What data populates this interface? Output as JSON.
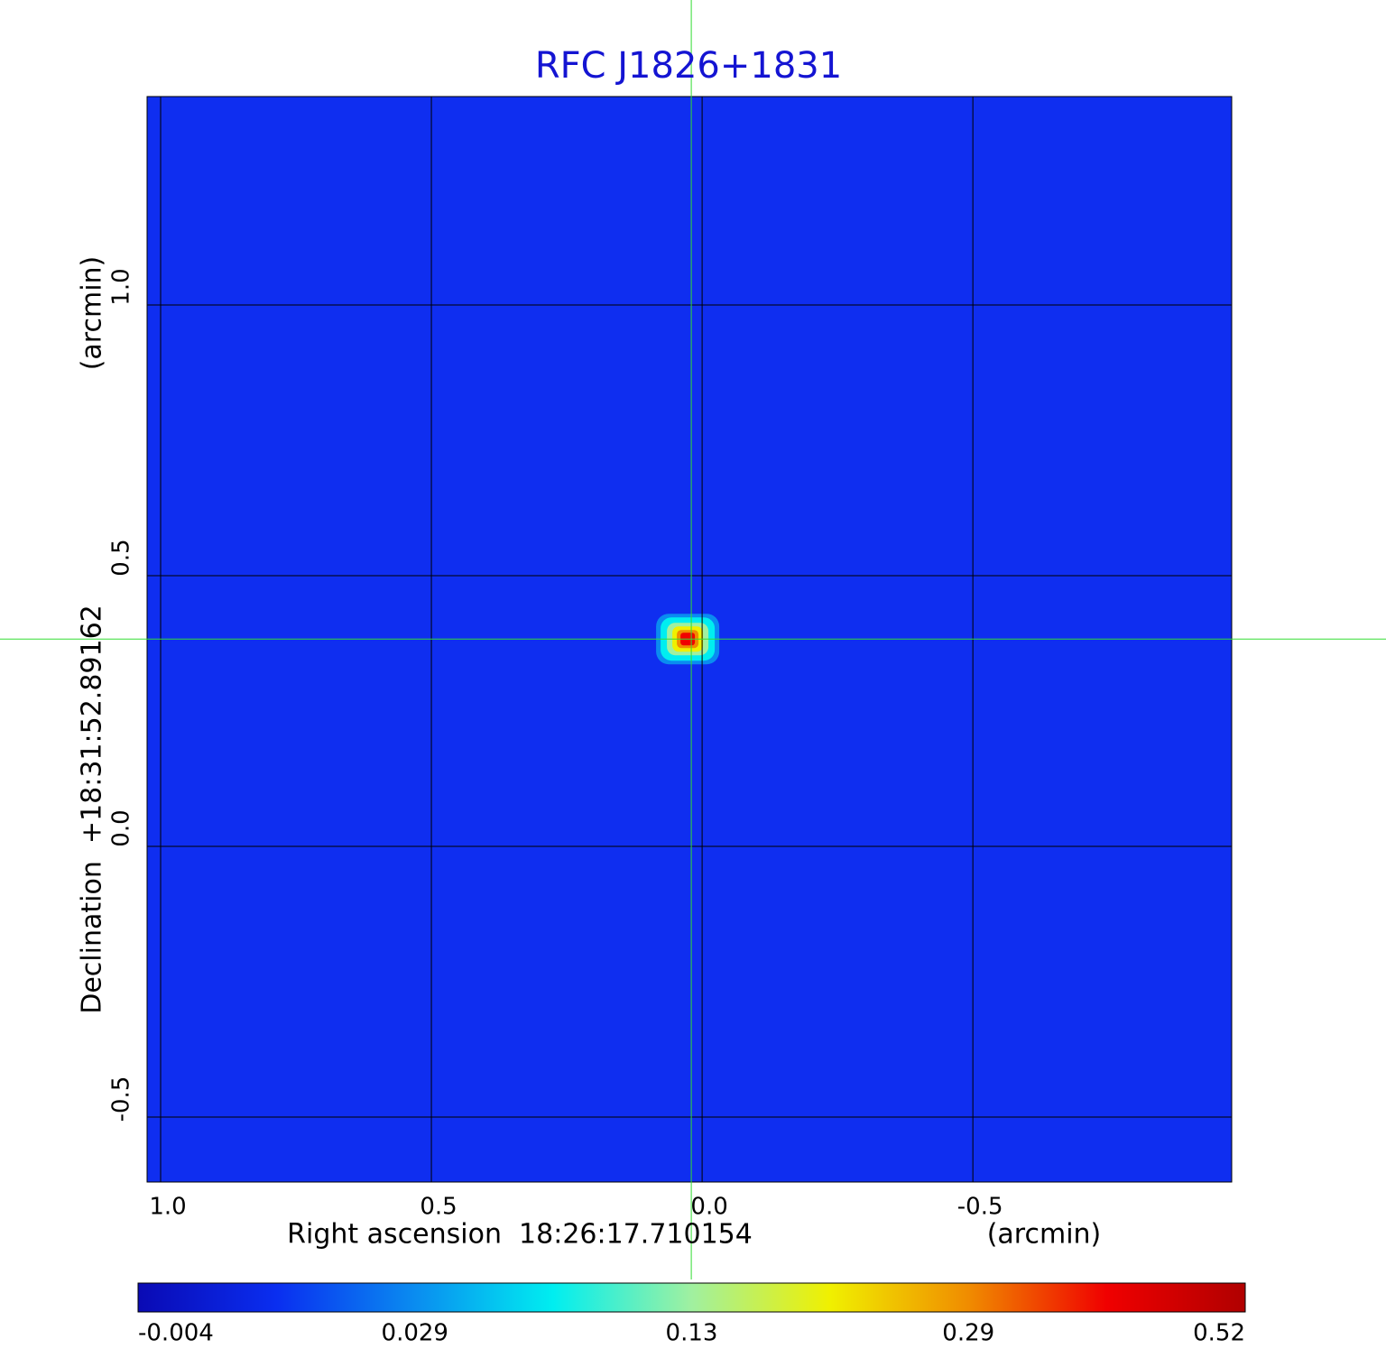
{
  "chart_data": {
    "type": "image",
    "title": "RFC J1826+1831",
    "xlabel": "Right ascension  18:26:17.710154",
    "xunit": "(arcmin)",
    "ylabel": "Declination  +18:31:52.89162",
    "yunit": "(arcmin)",
    "xlim": [
      1.025,
      -0.978
    ],
    "ylim": [
      -0.62,
      1.385
    ],
    "xticks": [
      {
        "value": 1,
        "label": "1.0"
      },
      0.5,
      {
        "value": 0,
        "label": "0.0"
      },
      -0.5
    ],
    "yticks": [
      -0.5,
      {
        "value": 0,
        "label": "0.0"
      },
      0.5,
      {
        "value": 1,
        "label": "1.0"
      }
    ],
    "grid": true,
    "background": "#0f2ef0",
    "source": {
      "x": 0.02,
      "y": 0.383,
      "peak": 0.52
    },
    "crosshair_color": "#33dd33",
    "colorbar": {
      "ticks": [
        -0.004,
        0.029,
        0.13,
        0.29,
        0.52
      ],
      "colors": [
        "#0a0ab4",
        "#0a2ef0",
        "#0a8cf0",
        "#00eef0",
        "#a0f0a0",
        "#f0f000",
        "#f08c00",
        "#f00000",
        "#b00000"
      ]
    }
  }
}
